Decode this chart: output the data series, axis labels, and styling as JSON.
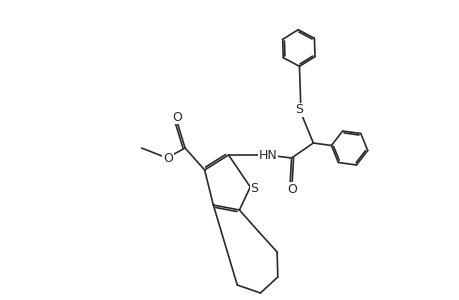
{
  "bg": "#ffffff",
  "lc": "#2a2a2a",
  "lw": 1.2,
  "dbo": 0.06,
  "fs": 9.0,
  "xlim": [
    -1.0,
    9.0
  ],
  "ylim": [
    -0.5,
    8.5
  ]
}
